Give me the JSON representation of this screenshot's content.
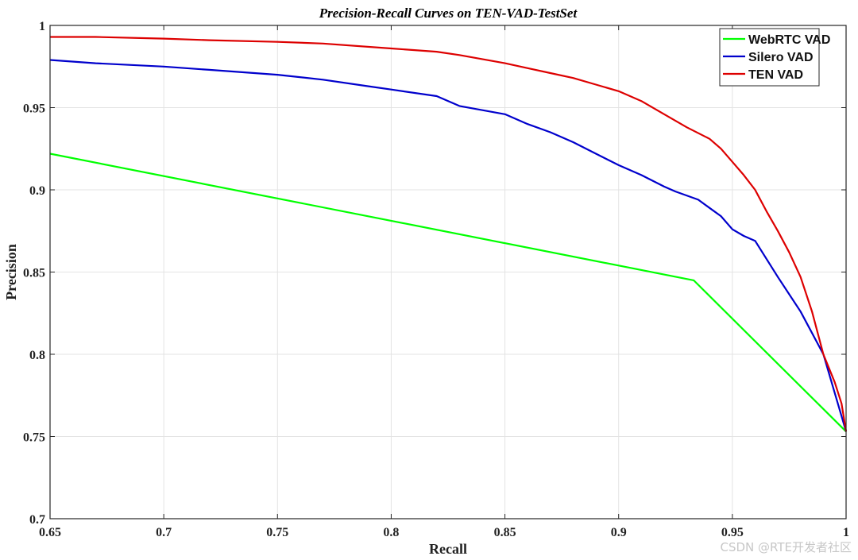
{
  "chart_data": {
    "type": "line",
    "title": "Precision-Recall Curves on TEN-VAD-TestSet",
    "xlabel": "Recall",
    "ylabel": "Precision",
    "xlim": [
      0.65,
      1
    ],
    "ylim": [
      0.7,
      1
    ],
    "xticks": [
      "0.65",
      "0.7",
      "0.75",
      "0.8",
      "0.85",
      "0.9",
      "0.95",
      "1"
    ],
    "yticks": [
      "0.7",
      "0.75",
      "0.8",
      "0.85",
      "0.9",
      "0.95",
      "1"
    ],
    "grid": true,
    "legend_position": "top-right",
    "series": [
      {
        "name": "WebRTC VAD",
        "color": "#00ff00",
        "x": [
          0.65,
          0.933,
          1.0
        ],
        "y": [
          0.922,
          0.845,
          0.753
        ]
      },
      {
        "name": "Silero VAD",
        "color": "#0000cc",
        "x": [
          0.65,
          0.67,
          0.7,
          0.72,
          0.75,
          0.77,
          0.79,
          0.8,
          0.82,
          0.83,
          0.85,
          0.86,
          0.87,
          0.88,
          0.89,
          0.9,
          0.91,
          0.92,
          0.925,
          0.935,
          0.94,
          0.945,
          0.95,
          0.955,
          0.96,
          0.965,
          0.97,
          0.98,
          0.99,
          1.0
        ],
        "y": [
          0.979,
          0.977,
          0.975,
          0.973,
          0.97,
          0.967,
          0.963,
          0.961,
          0.957,
          0.951,
          0.946,
          0.94,
          0.935,
          0.929,
          0.922,
          0.915,
          0.909,
          0.902,
          0.899,
          0.894,
          0.889,
          0.884,
          0.876,
          0.872,
          0.869,
          0.858,
          0.847,
          0.826,
          0.8,
          0.753
        ]
      },
      {
        "name": "TEN VAD",
        "color": "#dd0000",
        "x": [
          0.65,
          0.67,
          0.7,
          0.72,
          0.75,
          0.77,
          0.8,
          0.82,
          0.83,
          0.85,
          0.86,
          0.87,
          0.88,
          0.89,
          0.9,
          0.91,
          0.92,
          0.93,
          0.94,
          0.945,
          0.95,
          0.955,
          0.96,
          0.965,
          0.97,
          0.975,
          0.98,
          0.985,
          0.99,
          0.995,
          0.998,
          1.0
        ],
        "y": [
          0.993,
          0.993,
          0.992,
          0.991,
          0.99,
          0.989,
          0.986,
          0.984,
          0.982,
          0.977,
          0.974,
          0.971,
          0.968,
          0.964,
          0.96,
          0.954,
          0.946,
          0.938,
          0.931,
          0.925,
          0.917,
          0.909,
          0.9,
          0.887,
          0.875,
          0.862,
          0.847,
          0.826,
          0.8,
          0.783,
          0.77,
          0.753
        ]
      }
    ]
  },
  "watermark": "CSDN @RTE开发者社区"
}
